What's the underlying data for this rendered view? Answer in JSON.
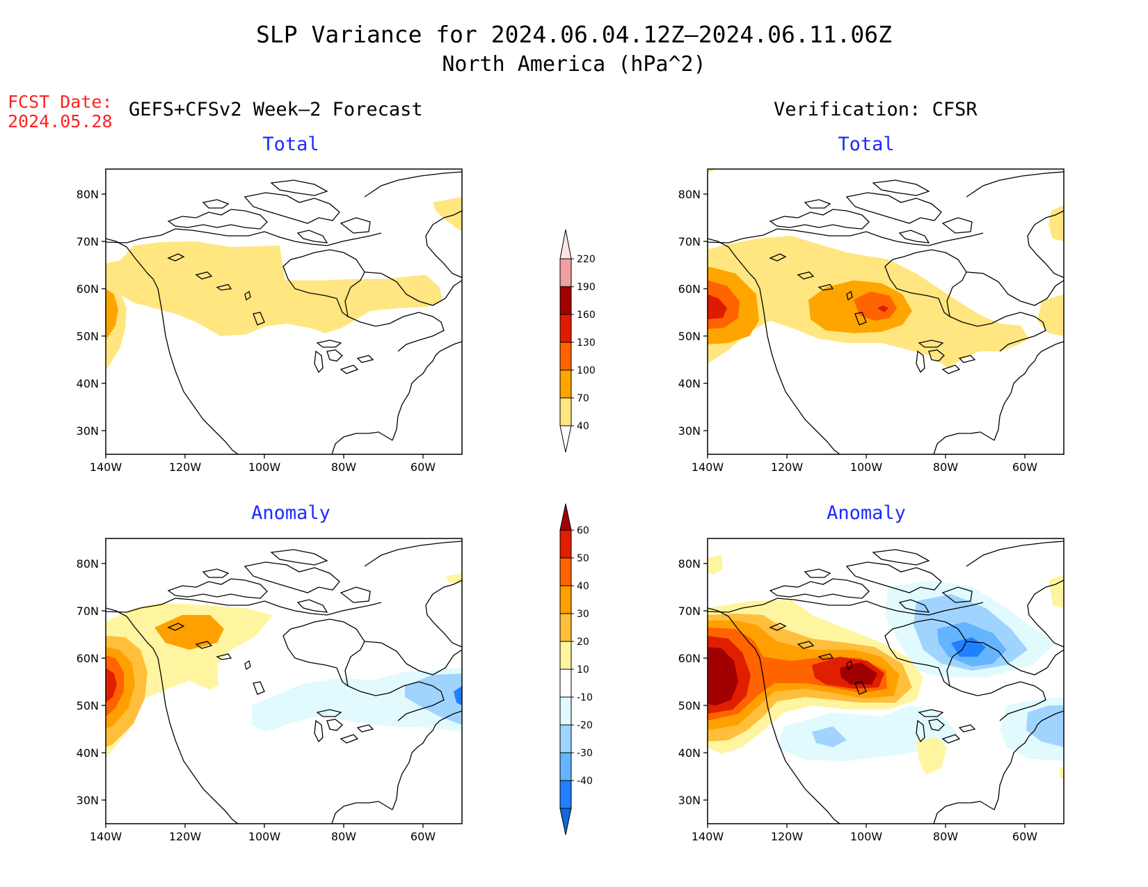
{
  "title": {
    "line1": "SLP Variance for 2024.06.04.12Z–2024.06.11.06Z",
    "line2": "North America (hPa^2)"
  },
  "fcst_date": {
    "label": "FCST Date:",
    "value": "2024.05.28"
  },
  "headers": {
    "left": "GEFS+CFSv2 Week–2 Forecast",
    "right": "Verification: CFSR"
  },
  "panel_titles": {
    "forecast_total": "Total",
    "verification_total": "Total",
    "forecast_anomaly": "Anomaly",
    "verification_anomaly": "Anomaly"
  },
  "axes": {
    "lat_labels": [
      "80N",
      "70N",
      "60N",
      "50N",
      "40N",
      "30N"
    ],
    "lon_labels": [
      "140W",
      "120W",
      "100W",
      "80W",
      "60W"
    ]
  },
  "total_colorbar": {
    "levels": [
      "40",
      "70",
      "100",
      "130",
      "160",
      "190",
      "220"
    ],
    "colors": [
      "#ffe680",
      "#ffa500",
      "#ff6400",
      "#e01a00",
      "#a00000",
      "#f0a0a0",
      "#fde4e4"
    ]
  },
  "anomaly_colorbar": {
    "levels": [
      "-40",
      "-30",
      "-20",
      "-10",
      "10",
      "20",
      "30",
      "40",
      "50",
      "60"
    ],
    "colors": [
      "#1468d8",
      "#2080ff",
      "#64b4ff",
      "#a0d4ff",
      "#e0fafe",
      "#ffffff",
      "#fff5a0",
      "#ffbe3c",
      "#ffa000",
      "#ff6400",
      "#e01e00",
      "#a00000"
    ]
  },
  "colors": {
    "title_text": "#000000",
    "fcst_text": "#ff2020",
    "panel_title": "#1a2bff"
  }
}
